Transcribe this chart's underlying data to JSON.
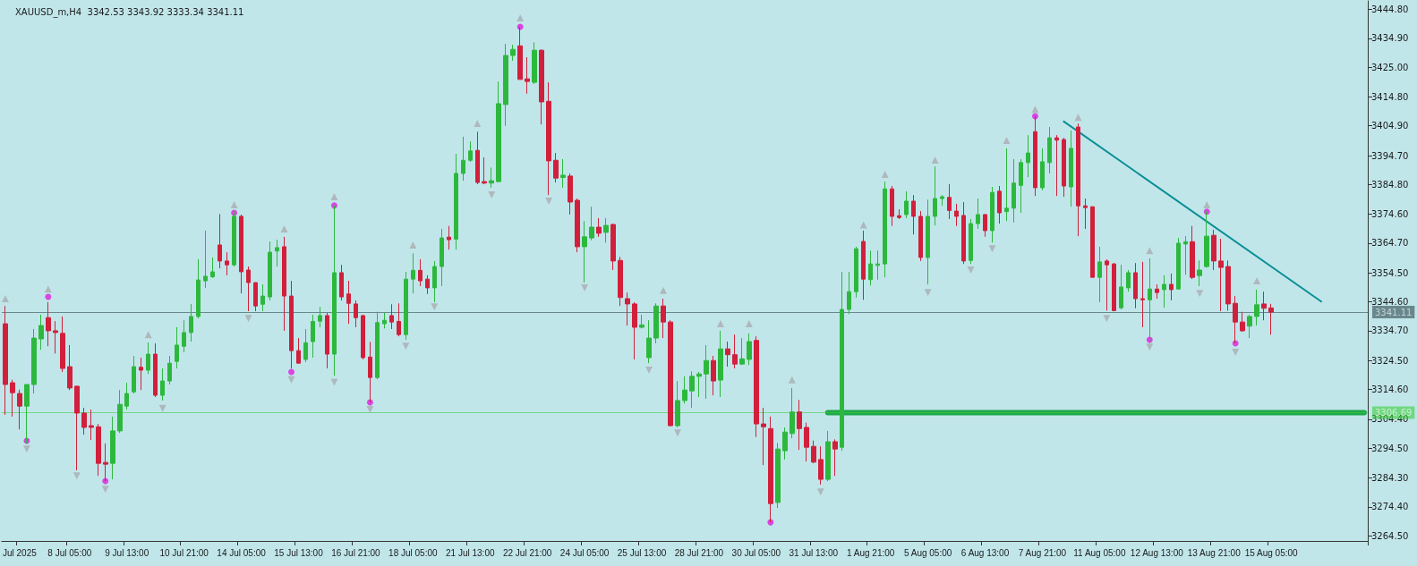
{
  "chart_data": {
    "type": "candlestick",
    "title": "XAUUSD_m,H4  3342.53 3343.92 3333.34 3341.11",
    "categories": [
      null,
      null,
      "Jul 2025",
      null,
      null,
      null,
      null,
      null,
      null,
      "8 Jul 05:00",
      null,
      null,
      null,
      null,
      null,
      null,
      null,
      "9 Jul 13:00",
      null,
      null,
      null,
      null,
      null,
      null,
      null,
      "10 Jul 21:00",
      null,
      null,
      null,
      null,
      null,
      null,
      null,
      "14 Jul 05:00",
      null,
      null,
      null,
      null,
      null,
      null,
      null,
      "15 Jul 13:00",
      null,
      null,
      null,
      null,
      null,
      null,
      null,
      "16 Jul 21:00",
      null,
      null,
      null,
      null,
      null,
      null,
      null,
      "18 Jul 05:00",
      null,
      null,
      null,
      null,
      null,
      null,
      null,
      "21 Jul 13:00",
      null,
      null,
      null,
      null,
      null,
      null,
      null,
      "22 Jul 21:00",
      null,
      null,
      null,
      null,
      null,
      null,
      null,
      "24 Jul 05:00",
      null,
      null,
      null,
      null,
      null,
      null,
      null,
      "25 Jul 13:00",
      null,
      null,
      null,
      null,
      null,
      null,
      null,
      "28 Jul 21:00",
      null,
      null,
      null,
      null,
      null,
      null,
      null,
      "30 Jul 05:00",
      null,
      null,
      null,
      null,
      null,
      null,
      null,
      "31 Jul 13:00",
      null,
      null,
      null,
      null,
      null,
      null,
      null,
      "1 Aug 21:00",
      null,
      null,
      null,
      null,
      null,
      null,
      null,
      "5 Aug 05:00",
      null,
      null,
      null,
      null,
      null,
      null,
      null,
      "6 Aug 13:00",
      null,
      null,
      null,
      null,
      null,
      null,
      null,
      "7 Aug 21:00",
      null,
      null,
      null,
      null,
      null,
      null,
      null,
      "11 Aug 05:00",
      null,
      null,
      null,
      null,
      null,
      null,
      null,
      "12 Aug 13:00",
      null,
      null,
      null,
      null,
      null,
      null,
      null,
      "13 Aug 21:00",
      null,
      null,
      null,
      null,
      null,
      null,
      null,
      "15 Aug 05:00",
      null,
      null,
      null,
      null,
      null,
      null,
      null,
      null,
      null,
      null,
      null,
      null,
      null
    ],
    "ohlc": [
      [
        3337.1,
        3343.2,
        3305.9,
        3316.3
      ],
      [
        3316.9,
        3317.9,
        3305.3,
        3313.5
      ],
      [
        3313.2,
        3314.5,
        3300.9,
        3308.9
      ],
      [
        3308.9,
        3316.3,
        3296.1,
        3316.3
      ],
      [
        3316.3,
        3335.3,
        3313.2,
        3332.2
      ],
      [
        3331.9,
        3340.2,
        3328.2,
        3336.5
      ],
      [
        3339.2,
        3344.5,
        3329.4,
        3334.7
      ],
      [
        3334.7,
        3338.0,
        3326.9,
        3334.1
      ],
      [
        3333.8,
        3339.6,
        3320.6,
        3321.8
      ],
      [
        3322.4,
        3329.8,
        3314.4,
        3315.1
      ],
      [
        3315.7,
        3315.9,
        3286.9,
        3306.5
      ],
      [
        3306.5,
        3308.3,
        3299.1,
        3301.6
      ],
      [
        3302.2,
        3307.7,
        3297.3,
        3301.6
      ],
      [
        3301.8,
        3302.8,
        3285.0,
        3289.3
      ],
      [
        3289.6,
        3296.1,
        3283.2,
        3289.0
      ],
      [
        3289.3,
        3305.3,
        3283.8,
        3300.4
      ],
      [
        3300.4,
        3314.4,
        3299.7,
        3309.5
      ],
      [
        3308.9,
        3316.9,
        3307.7,
        3313.2
      ],
      [
        3313.8,
        3326.1,
        3313.2,
        3322.4
      ],
      [
        3322.2,
        3325.5,
        3314.4,
        3321.2
      ],
      [
        3321.2,
        3330.7,
        3319.9,
        3326.7
      ],
      [
        3326.7,
        3330.4,
        3312.0,
        3312.6
      ],
      [
        3312.6,
        3321.8,
        3310.8,
        3317.5
      ],
      [
        3317.5,
        3326.1,
        3316.3,
        3323.6
      ],
      [
        3324.2,
        3335.9,
        3321.8,
        3329.8
      ],
      [
        3329.4,
        3338.3,
        3327.3,
        3334.1
      ],
      [
        3334.1,
        3343.9,
        3331.0,
        3339.6
      ],
      [
        3339.6,
        3359.2,
        3338.9,
        3352.1
      ],
      [
        3351.8,
        3369.0,
        3349.4,
        3353.4
      ],
      [
        3353.2,
        3359.8,
        3352.8,
        3354.9
      ],
      [
        3364.1,
        3374.7,
        3356.1,
        3358.6
      ],
      [
        3358.6,
        3361.6,
        3353.7,
        3357.3
      ],
      [
        3357.3,
        3375.7,
        3356.7,
        3373.9
      ],
      [
        3373.9,
        3374.5,
        3347.5,
        3354.9
      ],
      [
        3355.5,
        3356.7,
        3341.4,
        3351.2
      ],
      [
        3351.2,
        3351.2,
        3341.4,
        3343.2
      ],
      [
        3343.8,
        3350.6,
        3341.4,
        3346.6
      ],
      [
        3346.3,
        3365.3,
        3345.1,
        3361.6
      ],
      [
        3362.0,
        3365.9,
        3356.7,
        3363.2
      ],
      [
        3363.5,
        3366.9,
        3334.7,
        3346.6
      ],
      [
        3346.6,
        3351.8,
        3321.8,
        3327.9
      ],
      [
        3327.9,
        3332.2,
        3323.6,
        3323.6
      ],
      [
        3324.9,
        3335.3,
        3324.0,
        3330.6
      ],
      [
        3331.0,
        3340.2,
        3325.5,
        3337.9
      ],
      [
        3338.0,
        3342.9,
        3335.9,
        3339.9
      ],
      [
        3339.9,
        3340.8,
        3321.8,
        3326.7
      ],
      [
        3326.7,
        3377.6,
        3319.3,
        3354.6
      ],
      [
        3354.6,
        3357.3,
        3345.1,
        3346.3
      ],
      [
        3347.3,
        3351.8,
        3337.1,
        3344.1
      ],
      [
        3343.9,
        3345.1,
        3335.9,
        3339.2
      ],
      [
        3339.9,
        3340.2,
        3324.9,
        3325.5
      ],
      [
        3325.7,
        3330.9,
        3310.2,
        3318.7
      ],
      [
        3318.7,
        3341.2,
        3318.1,
        3337.5
      ],
      [
        3337.1,
        3340.8,
        3335.5,
        3338.3
      ],
      [
        3339.9,
        3343.8,
        3335.3,
        3337.7
      ],
      [
        3337.9,
        3344.1,
        3332.8,
        3333.4
      ],
      [
        3333.4,
        3354.9,
        3331.6,
        3352.4
      ],
      [
        3352.4,
        3361.2,
        3347.5,
        3355.4
      ],
      [
        3355.4,
        3359.2,
        3350.0,
        3351.8
      ],
      [
        3352.4,
        3353.7,
        3347.3,
        3349.4
      ],
      [
        3349.4,
        3358.6,
        3344.5,
        3356.7
      ],
      [
        3356.7,
        3369.6,
        3350.0,
        3366.5
      ],
      [
        3366.8,
        3370.6,
        3362.5,
        3365.9
      ],
      [
        3366.1,
        3395.3,
        3362.5,
        3388.6
      ],
      [
        3388.6,
        3401.2,
        3386.1,
        3393.1
      ],
      [
        3393.1,
        3399.6,
        3392.6,
        3396.3
      ],
      [
        3396.5,
        3402.9,
        3384.9,
        3385.5
      ],
      [
        3385.8,
        3394.1,
        3384.9,
        3385.3
      ],
      [
        3385.3,
        3390.6,
        3383.7,
        3386.1
      ],
      [
        3385.8,
        3420.1,
        3385.5,
        3412.5
      ],
      [
        3412.2,
        3433.0,
        3404.9,
        3429.0
      ],
      [
        3429.0,
        3432.7,
        3427.2,
        3431.1
      ],
      [
        3432.3,
        3438.8,
        3420.8,
        3420.8
      ],
      [
        3421.0,
        3428.4,
        3415.9,
        3420.1
      ],
      [
        3419.8,
        3433.5,
        3419.2,
        3430.8
      ],
      [
        3430.8,
        3431.1,
        3405.4,
        3413.1
      ],
      [
        3413.3,
        3419.8,
        3381.2,
        3392.9
      ],
      [
        3393.1,
        3395.6,
        3385.5,
        3387.0
      ],
      [
        3387.2,
        3393.5,
        3383.7,
        3388.0
      ],
      [
        3387.7,
        3388.6,
        3374.5,
        3378.8
      ],
      [
        3379.4,
        3380.0,
        3361.6,
        3363.5
      ],
      [
        3363.5,
        3372.3,
        3351.2,
        3366.9
      ],
      [
        3366.5,
        3377.2,
        3365.7,
        3370.2
      ],
      [
        3370.2,
        3373.3,
        3366.9,
        3368.1
      ],
      [
        3368.4,
        3373.3,
        3364.9,
        3370.8
      ],
      [
        3371.1,
        3371.4,
        3355.5,
        3358.6
      ],
      [
        3358.8,
        3360.0,
        3343.2,
        3346.1
      ],
      [
        3345.7,
        3347.8,
        3336.5,
        3343.9
      ],
      [
        3343.9,
        3344.5,
        3324.9,
        3335.9
      ],
      [
        3335.9,
        3340.2,
        3335.5,
        3336.7
      ],
      [
        3325.5,
        3338.3,
        3323.6,
        3332.2
      ],
      [
        3332.2,
        3344.1,
        3330.4,
        3343.2
      ],
      [
        3343.2,
        3345.7,
        3332.2,
        3337.7
      ],
      [
        3337.7,
        3338.3,
        3301.9,
        3302.2
      ],
      [
        3302.2,
        3317.5,
        3301.6,
        3310.8
      ],
      [
        3310.8,
        3319.1,
        3309.8,
        3314.4
      ],
      [
        3314.1,
        3320.8,
        3308.3,
        3319.1
      ],
      [
        3319.1,
        3320.6,
        3312.0,
        3319.9
      ],
      [
        3319.9,
        3329.8,
        3311.4,
        3324.5
      ],
      [
        3324.5,
        3326.1,
        3312.6,
        3317.5
      ],
      [
        3317.8,
        3334.7,
        3312.0,
        3328.5
      ],
      [
        3328.5,
        3331.0,
        3322.4,
        3326.5
      ],
      [
        3326.5,
        3333.4,
        3321.8,
        3323.3
      ],
      [
        3323.3,
        3332.2,
        3323.0,
        3325.1
      ],
      [
        3324.9,
        3333.8,
        3323.0,
        3331.0
      ],
      [
        3331.4,
        3332.8,
        3298.3,
        3302.8
      ],
      [
        3302.8,
        3308.3,
        3288.7,
        3301.8
      ],
      [
        3301.2,
        3305.3,
        3269.1,
        3275.5
      ],
      [
        3275.9,
        3296.3,
        3274.0,
        3294.2
      ],
      [
        3293.6,
        3301.6,
        3290.6,
        3300.0
      ],
      [
        3299.5,
        3315.1,
        3297.9,
        3306.9
      ],
      [
        3306.9,
        3311.0,
        3293.9,
        3301.2
      ],
      [
        3301.6,
        3303.2,
        3289.9,
        3294.8
      ],
      [
        3295.1,
        3297.1,
        3289.3,
        3289.7
      ],
      [
        3290.6,
        3295.1,
        3282.0,
        3283.8
      ],
      [
        3283.8,
        3300.4,
        3283.2,
        3296.7
      ],
      [
        3296.7,
        3297.5,
        3285.0,
        3294.2
      ],
      [
        3294.8,
        3354.9,
        3293.6,
        3342.0
      ],
      [
        3342.0,
        3354.9,
        3340.4,
        3348.1
      ],
      [
        3348.1,
        3363.5,
        3346.1,
        3362.8
      ],
      [
        3365.3,
        3369.0,
        3345.3,
        3352.4
      ],
      [
        3352.2,
        3362.2,
        3350.2,
        3357.6
      ],
      [
        3357.1,
        3362.2,
        3352.2,
        3357.6
      ],
      [
        3357.6,
        3385.8,
        3353.0,
        3383.3
      ],
      [
        3383.3,
        3384.3,
        3370.6,
        3373.9
      ],
      [
        3374.1,
        3376.3,
        3373.0,
        3373.5
      ],
      [
        3374.5,
        3382.5,
        3373.3,
        3379.1
      ],
      [
        3379.1,
        3381.2,
        3367.7,
        3373.9
      ],
      [
        3373.9,
        3375.7,
        3358.6,
        3359.8
      ],
      [
        3359.8,
        3379.6,
        3350.6,
        3373.9
      ],
      [
        3373.9,
        3391.0,
        3370.8,
        3380.0
      ],
      [
        3380.0,
        3381.2,
        3377.5,
        3380.6
      ],
      [
        3380.4,
        3384.9,
        3373.0,
        3375.9
      ],
      [
        3375.7,
        3378.2,
        3370.6,
        3373.9
      ],
      [
        3374.2,
        3378.8,
        3357.6,
        3358.6
      ],
      [
        3358.8,
        3373.0,
        3357.6,
        3371.4
      ],
      [
        3371.4,
        3380.0,
        3369.6,
        3374.5
      ],
      [
        3374.5,
        3374.7,
        3366.9,
        3369.0
      ],
      [
        3369.0,
        3384.0,
        3364.9,
        3382.1
      ],
      [
        3382.5,
        3384.3,
        3371.4,
        3375.1
      ],
      [
        3375.5,
        3397.2,
        3372.3,
        3376.7
      ],
      [
        3376.7,
        3393.5,
        3371.8,
        3385.3
      ],
      [
        3384.5,
        3393.5,
        3375.1,
        3392.3
      ],
      [
        3392.3,
        3401.7,
        3387.3,
        3395.6
      ],
      [
        3402.9,
        3408.2,
        3380.9,
        3383.7
      ],
      [
        3383.7,
        3397.2,
        3382.8,
        3392.6
      ],
      [
        3392.3,
        3404.5,
        3388.6,
        3400.8
      ],
      [
        3400.8,
        3401.7,
        3380.9,
        3400.0
      ],
      [
        3400.2,
        3400.8,
        3380.6,
        3384.3
      ],
      [
        3384.0,
        3403.3,
        3377.2,
        3397.2
      ],
      [
        3404.5,
        3405.7,
        3367.1,
        3377.5
      ],
      [
        3377.5,
        3380.0,
        3369.6,
        3376.9
      ],
      [
        3377.2,
        3377.2,
        3353.0,
        3353.0
      ],
      [
        3353.0,
        3363.5,
        3344.5,
        3358.3
      ],
      [
        3358.6,
        3359.2,
        3341.6,
        3357.3
      ],
      [
        3357.6,
        3357.9,
        3341.4,
        3341.6
      ],
      [
        3342.6,
        3357.3,
        3342.0,
        3349.7
      ],
      [
        3349.4,
        3355.5,
        3348.1,
        3354.6
      ],
      [
        3354.6,
        3357.9,
        3342.4,
        3345.7
      ],
      [
        3345.7,
        3358.3,
        3335.9,
        3345.3
      ],
      [
        3345.3,
        3359.5,
        3330.6,
        3349.0
      ],
      [
        3349.0,
        3350.6,
        3345.7,
        3347.8
      ],
      [
        3348.8,
        3353.7,
        3342.6,
        3350.6
      ],
      [
        3350.6,
        3354.3,
        3345.1,
        3348.8
      ],
      [
        3349.0,
        3366.5,
        3348.8,
        3364.7
      ],
      [
        3364.4,
        3367.1,
        3353.9,
        3365.2
      ],
      [
        3365.2,
        3370.6,
        3352.4,
        3353.0
      ],
      [
        3353.6,
        3358.8,
        3350.0,
        3355.5
      ],
      [
        3356.7,
        3375.7,
        3356.3,
        3367.1
      ],
      [
        3367.4,
        3369.3,
        3355.5,
        3358.6
      ],
      [
        3358.6,
        3366.2,
        3341.4,
        3356.4
      ],
      [
        3356.7,
        3358.8,
        3341.6,
        3343.9
      ],
      [
        3344.1,
        3346.6,
        3330.4,
        3337.7
      ],
      [
        3337.7,
        3341.2,
        3334.3,
        3334.7
      ],
      [
        3336.3,
        3340.2,
        3332.2,
        3339.6
      ],
      [
        3339.6,
        3348.8,
        3336.5,
        3343.6
      ],
      [
        3343.9,
        3348.1,
        3338.3,
        3342.4
      ],
      [
        3342.53,
        3343.92,
        3333.34,
        3341.11
      ],
      null,
      null,
      null,
      null,
      null,
      null,
      null,
      null,
      null,
      null,
      null,
      null,
      null
    ],
    "colors": [
      "#d21f3c",
      "#d21f3c",
      "#d21f3c",
      "#2db83d",
      "#2db83d",
      "#2db83d",
      "#d21f3c",
      "#d21f3c",
      "#d21f3c",
      "#d21f3c",
      "#d21f3c",
      "#d21f3c",
      "#d21f3c",
      "#d21f3c",
      "#d21f3c",
      "#2db83d",
      "#2db83d",
      "#2db83d",
      "#2db83d",
      "#d21f3c",
      "#2db83d",
      "#d21f3c",
      "#2db83d",
      "#2db83d",
      "#2db83d",
      "#2db83d",
      "#2db83d",
      "#2db83d",
      "#2db83d",
      "#2db83d",
      "#d21f3c",
      "#d21f3c",
      "#2db83d",
      "#d21f3c",
      "#d21f3c",
      "#d21f3c",
      "#2db83d",
      "#2db83d",
      "#2db83d",
      "#d21f3c",
      "#d21f3c",
      "#d21f3c",
      "#2db83d",
      "#2db83d",
      "#2db83d",
      "#d21f3c",
      "#2db83d",
      "#d21f3c",
      "#d21f3c",
      "#d21f3c",
      "#d21f3c",
      "#d21f3c",
      "#2db83d",
      "#2db83d",
      "#d21f3c",
      "#d21f3c",
      "#2db83d",
      "#2db83d",
      "#d21f3c",
      "#d21f3c",
      "#2db83d",
      "#2db83d",
      "#d21f3c",
      "#2db83d",
      "#2db83d",
      "#2db83d",
      "#d21f3c",
      "#d21f3c",
      "#2db83d",
      "#2db83d",
      "#2db83d",
      "#2db83d",
      "#d21f3c",
      "#d21f3c",
      "#2db83d",
      "#d21f3c",
      "#d21f3c",
      "#d21f3c",
      "#2db83d",
      "#d21f3c",
      "#d21f3c",
      "#2db83d",
      "#2db83d",
      "#d21f3c",
      "#2db83d",
      "#d21f3c",
      "#d21f3c",
      "#d21f3c",
      "#d21f3c",
      "#2db83d",
      "#2db83d",
      "#2db83d",
      "#d21f3c",
      "#d21f3c",
      "#2db83d",
      "#2db83d",
      "#2db83d",
      "#2db83d",
      "#2db83d",
      "#d21f3c",
      "#2db83d",
      "#d21f3c",
      "#d21f3c",
      "#2db83d",
      "#2db83d",
      "#d21f3c",
      "#d21f3c",
      "#d21f3c",
      "#2db83d",
      "#2db83d",
      "#2db83d",
      "#d21f3c",
      "#d21f3c",
      "#d21f3c",
      "#d21f3c",
      "#2db83d",
      "#d21f3c",
      "#2db83d",
      "#2db83d",
      "#2db83d",
      "#d21f3c",
      "#2db83d",
      "#2db83d",
      "#2db83d",
      "#d21f3c",
      "#d21f3c",
      "#2db83d",
      "#d21f3c",
      "#d21f3c",
      "#2db83d",
      "#2db83d",
      "#2db83d",
      "#d21f3c",
      "#d21f3c",
      "#d21f3c",
      "#2db83d",
      "#2db83d",
      "#d21f3c",
      "#2db83d",
      "#d21f3c",
      "#2db83d",
      "#2db83d",
      "#2db83d",
      "#2db83d",
      "#d21f3c",
      "#2db83d",
      "#2db83d",
      "#d21f3c",
      "#d21f3c",
      "#2db83d",
      "#d21f3c",
      "#d21f3c",
      "#d21f3c",
      "#2db83d",
      "#d21f3c",
      "#d21f3c",
      "#2db83d",
      "#2db83d",
      "#d21f3c",
      "#d21f3c",
      "#2db83d",
      "#d21f3c",
      "#2db83d",
      "#d21f3c",
      "#2db83d",
      "#2db83d",
      "#d21f3c",
      "#2db83d",
      "#2db83d",
      "#d21f3c",
      "#d21f3c",
      "#d21f3c",
      "#d21f3c",
      "#d21f3c",
      "#2db83d",
      "#2db83d",
      "#d21f3c",
      "#d21f3c",
      null,
      null,
      null,
      null,
      null,
      null,
      null,
      null,
      null,
      null,
      null,
      null,
      null
    ],
    "ylim": [
      3262.7,
      3447.7
    ],
    "yticks": [
      {
        "value": 3444.8,
        "label": "3444.80"
      },
      {
        "value": 3434.9,
        "label": "3434.90"
      },
      {
        "value": 3425.0,
        "label": "3425.00"
      },
      {
        "value": 3414.8,
        "label": "3414.80"
      },
      {
        "value": 3404.9,
        "label": "3404.90"
      },
      {
        "value": 3394.7,
        "label": "3394.70"
      },
      {
        "value": 3384.8,
        "label": "3384.80"
      },
      {
        "value": 3374.6,
        "label": "3374.60"
      },
      {
        "value": 3364.7,
        "label": "3364.70"
      },
      {
        "value": 3354.5,
        "label": "3354.50"
      },
      {
        "value": 3344.6,
        "label": "3344.60"
      },
      {
        "value": 3334.7,
        "label": "3334.70"
      },
      {
        "value": 3324.5,
        "label": "3324.50"
      },
      {
        "value": 3314.6,
        "label": "3314.60"
      },
      {
        "value": 3304.4,
        "label": "3304.40"
      },
      {
        "value": 3294.5,
        "label": "3294.50"
      },
      {
        "value": 3284.3,
        "label": "3284.30"
      },
      {
        "value": 3274.4,
        "label": "3274.40"
      },
      {
        "value": 3264.5,
        "label": "3264.50"
      }
    ],
    "ref_lines": [
      {
        "axis": "y",
        "value": 3341.11,
        "label": "3341.11",
        "color": "#2f4a50"
      },
      {
        "axis": "y",
        "value": 3306.69,
        "label": "3306.69",
        "color": "#3ccf3c"
      }
    ],
    "series": [
      {
        "type": "line",
        "color": "#1fa84a",
        "values": [
          null,
          null,
          null,
          null,
          null,
          null,
          null,
          null,
          null,
          null,
          null,
          null,
          null,
          null,
          null,
          null,
          null,
          null,
          null,
          null,
          null,
          null,
          null,
          null,
          null,
          null,
          null,
          null,
          null,
          null,
          null,
          null,
          null,
          null,
          null,
          null,
          null,
          null,
          null,
          null,
          null,
          null,
          null,
          null,
          null,
          null,
          null,
          null,
          null,
          null,
          null,
          null,
          null,
          null,
          null,
          null,
          null,
          null,
          null,
          null,
          null,
          null,
          null,
          null,
          null,
          null,
          null,
          null,
          null,
          null,
          null,
          null,
          null,
          null,
          null,
          null,
          null,
          null,
          null,
          null,
          null,
          null,
          null,
          null,
          null,
          null,
          null,
          null,
          null,
          null,
          null,
          null,
          null,
          null,
          null,
          null,
          null,
          null,
          null,
          null,
          null,
          null,
          null,
          null,
          null,
          null,
          null,
          null,
          null,
          null,
          null,
          null,
          null,
          null,
          null,
          3306.69,
          3306.69,
          3306.69,
          3306.69,
          3306.69,
          3306.69,
          3306.69,
          3306.69,
          3306.69,
          3306.69,
          3306.69,
          3306.69,
          3306.69,
          3306.69,
          3306.69,
          3306.69,
          3306.69,
          3306.69,
          3306.69,
          3306.69,
          3306.69,
          3306.69,
          3306.69,
          3306.69,
          3306.69,
          3306.69,
          3306.69,
          3306.69,
          3306.69,
          3306.69,
          3306.69,
          3306.69,
          3306.69,
          3306.69,
          3306.69,
          3306.69,
          3306.69,
          3306.69,
          3306.69,
          3306.69,
          3306.69,
          3306.69,
          3306.69,
          3306.69,
          3306.69,
          3306.69,
          3306.69,
          3306.69,
          3306.69,
          3306.69,
          3306.69,
          3306.69,
          3306.69,
          3306.69,
          3306.69,
          3306.69,
          3306.69,
          3306.69,
          3306.69,
          3306.69,
          3306.69,
          3306.69,
          3306.69,
          3306.69,
          3306.69,
          3306.69,
          3306.69,
          3306.69,
          3306.69,
          3306.69,
          3306.69,
          3306.69,
          3306.69,
          3306.69,
          3306.69,
          3306.69
        ]
      },
      {
        "type": "line",
        "color": "#0a8f96",
        "values": [
          null,
          null,
          null,
          null,
          null,
          null,
          null,
          null,
          null,
          null,
          null,
          null,
          null,
          null,
          null,
          null,
          null,
          null,
          null,
          null,
          null,
          null,
          null,
          null,
          null,
          null,
          null,
          null,
          null,
          null,
          null,
          null,
          null,
          null,
          null,
          null,
          null,
          null,
          null,
          null,
          null,
          null,
          null,
          null,
          null,
          null,
          null,
          null,
          null,
          null,
          null,
          null,
          null,
          null,
          null,
          null,
          null,
          null,
          null,
          null,
          null,
          null,
          null,
          null,
          null,
          null,
          null,
          null,
          null,
          null,
          null,
          null,
          null,
          null,
          null,
          null,
          null,
          null,
          null,
          null,
          null,
          null,
          null,
          null,
          null,
          null,
          null,
          null,
          null,
          null,
          null,
          null,
          null,
          null,
          null,
          null,
          null,
          null,
          null,
          null,
          null,
          null,
          null,
          null,
          null,
          null,
          null,
          null,
          null,
          null,
          null,
          null,
          null,
          null,
          null,
          null,
          null,
          null,
          null,
          null,
          null,
          null,
          null,
          null,
          null,
          null,
          null,
          null,
          null,
          null,
          null,
          null,
          null,
          null,
          null,
          null,
          null,
          null,
          null,
          null,
          null,
          null,
          null,
          null,
          null,
          null,
          null,
          null,
          3406.4,
          null,
          null,
          null,
          null,
          null,
          null,
          null,
          null,
          null,
          null,
          null,
          null,
          null,
          null,
          null,
          null,
          null,
          null,
          null,
          null,
          null,
          null,
          null,
          null,
          null,
          null,
          null,
          null,
          null,
          null,
          null,
          null,
          null,
          null,
          null,
          3344.7,
          null,
          null,
          null,
          null,
          null,
          null
        ]
      },
      {
        "type": "scatter",
        "marker": "triangle",
        "color": "#a9aeb2",
        "values": [
          3345.7,
          null,
          null,
          null,
          null,
          null,
          3349.0,
          null,
          null,
          null,
          null,
          null,
          null,
          null,
          null,
          null,
          null,
          null,
          null,
          null,
          3333.4,
          null,
          null,
          null,
          null,
          null,
          null,
          null,
          null,
          null,
          null,
          null,
          3377.9,
          null,
          null,
          null,
          null,
          null,
          null,
          3369.6,
          null,
          null,
          null,
          null,
          null,
          null,
          3380.6,
          null,
          null,
          null,
          null,
          null,
          null,
          null,
          null,
          null,
          null,
          3364.1,
          null,
          null,
          null,
          null,
          null,
          null,
          null,
          null,
          3405.7,
          null,
          null,
          null,
          null,
          null,
          3441.9,
          null,
          null,
          null,
          null,
          null,
          null,
          null,
          null,
          null,
          null,
          null,
          null,
          null,
          null,
          null,
          null,
          null,
          null,
          null,
          3348.5,
          null,
          null,
          null,
          null,
          null,
          null,
          null,
          3337.1,
          null,
          null,
          null,
          3337.1,
          null,
          null,
          null,
          null,
          null,
          3317.9,
          null,
          null,
          null,
          null,
          null,
          null,
          null,
          null,
          null,
          3371.0,
          null,
          null,
          3388.3,
          null,
          null,
          null,
          null,
          null,
          null,
          3393.2,
          null,
          null,
          null,
          null,
          null,
          null,
          null,
          null,
          null,
          3399.9,
          null,
          null,
          null,
          3410.6,
          null,
          null,
          null,
          null,
          null,
          3407.8,
          null,
          null,
          null,
          null,
          null,
          null,
          null,
          null,
          null,
          3362.2,
          null,
          null,
          null,
          null,
          null,
          null,
          null,
          3377.9,
          null,
          null,
          null,
          null,
          null,
          null,
          3351.8,
          null,
          null,
          null,
          null,
          null,
          null,
          null,
          null,
          null,
          null,
          null,
          null,
          null,
          null,
          null
        ]
      },
      {
        "type": "scatter",
        "marker": "triangle",
        "color": "#a9aeb2",
        "values": [
          null,
          null,
          null,
          3294.2,
          null,
          null,
          null,
          null,
          null,
          null,
          3285.0,
          null,
          null,
          null,
          3280.4,
          null,
          null,
          null,
          null,
          null,
          null,
          null,
          3308.1,
          null,
          null,
          null,
          null,
          null,
          null,
          null,
          null,
          null,
          null,
          null,
          3338.9,
          null,
          null,
          null,
          null,
          null,
          3317.9,
          null,
          null,
          null,
          null,
          null,
          3317.1,
          null,
          null,
          null,
          null,
          3307.7,
          null,
          null,
          null,
          null,
          3329.4,
          null,
          null,
          null,
          3342.9,
          null,
          null,
          null,
          null,
          null,
          null,
          null,
          3381.2,
          null,
          null,
          null,
          null,
          null,
          null,
          null,
          3379.1,
          null,
          null,
          null,
          null,
          3349.4,
          null,
          null,
          null,
          null,
          null,
          null,
          null,
          null,
          3321.2,
          null,
          null,
          null,
          3299.7,
          null,
          null,
          null,
          null,
          null,
          null,
          null,
          null,
          null,
          null,
          null,
          null,
          null,
          null,
          null,
          null,
          null,
          null,
          null,
          3279.5,
          null,
          null,
          null,
          null,
          null,
          null,
          null,
          null,
          null,
          null,
          null,
          null,
          null,
          null,
          3347.8,
          null,
          null,
          null,
          null,
          null,
          3355.5,
          null,
          null,
          3362.8,
          null,
          null,
          null,
          null,
          null,
          null,
          null,
          null,
          null,
          null,
          null,
          null,
          null,
          null,
          null,
          3338.9,
          null,
          null,
          null,
          null,
          null,
          3329.1,
          null,
          null,
          null,
          null,
          null,
          null,
          3347.5,
          null,
          null,
          null,
          null,
          3327.3,
          null,
          null,
          null,
          null,
          null,
          null,
          null,
          null,
          null,
          null,
          null,
          null,
          null,
          null,
          null,
          null,
          null,
          null
        ]
      },
      {
        "type": "scatter",
        "marker": "circle",
        "color": "#e01ee0",
        "values": [
          null,
          null,
          null,
          3297.0,
          null,
          null,
          3346.3,
          null,
          null,
          null,
          null,
          null,
          null,
          null,
          3283.2,
          null,
          null,
          null,
          null,
          null,
          null,
          null,
          null,
          null,
          null,
          null,
          null,
          null,
          null,
          null,
          null,
          null,
          3375.1,
          null,
          null,
          null,
          null,
          null,
          null,
          null,
          3320.6,
          null,
          null,
          null,
          null,
          null,
          3377.6,
          null,
          null,
          null,
          null,
          3310.2,
          null,
          null,
          null,
          null,
          null,
          null,
          null,
          null,
          null,
          null,
          null,
          null,
          null,
          null,
          null,
          null,
          null,
          null,
          null,
          null,
          3438.8,
          null,
          null,
          null,
          null,
          null,
          null,
          null,
          null,
          null,
          null,
          null,
          null,
          null,
          null,
          null,
          null,
          null,
          null,
          null,
          null,
          null,
          null,
          null,
          null,
          null,
          null,
          null,
          null,
          null,
          null,
          null,
          null,
          null,
          null,
          3269.1,
          null,
          null,
          null,
          null,
          null,
          null,
          null,
          null,
          null,
          null,
          null,
          null,
          null,
          null,
          null,
          null,
          null,
          null,
          null,
          null,
          null,
          null,
          null,
          null,
          null,
          null,
          null,
          null,
          null,
          null,
          null,
          null,
          null,
          null,
          null,
          null,
          3408.2,
          null,
          null,
          null,
          null,
          null,
          null,
          null,
          null,
          null,
          null,
          null,
          null,
          null,
          null,
          null,
          3331.6,
          null,
          null,
          null,
          null,
          null,
          null,
          null,
          3375.5,
          null,
          null,
          null,
          3330.4,
          null,
          null,
          null,
          null,
          null,
          null,
          null,
          null,
          null,
          null,
          null,
          null,
          null,
          null,
          null,
          null,
          null,
          null
        ]
      }
    ]
  }
}
